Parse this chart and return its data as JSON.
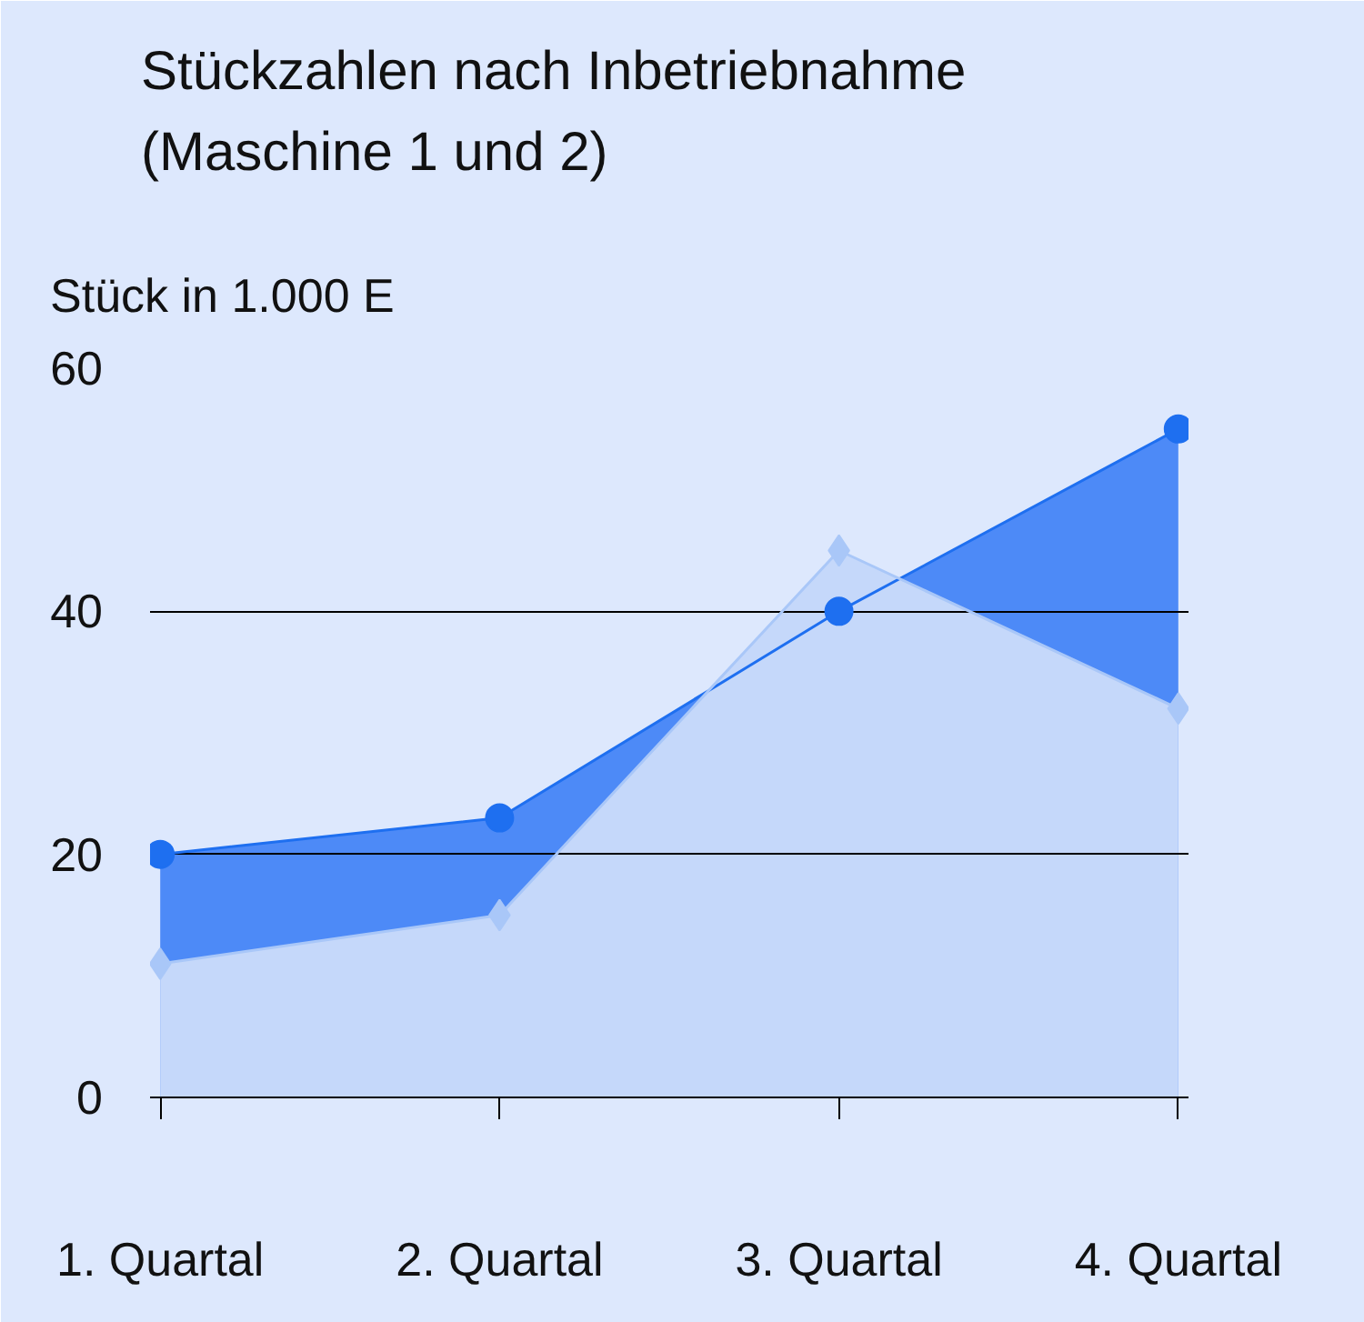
{
  "chart_data": {
    "type": "area",
    "title": "Stückzahlen nach Inbetriebnahme\n(Maschine 1 und 2)",
    "ylabel": "Stück in 1.000 E",
    "categories": [
      "1. Quartal",
      "2. Quartal",
      "3. Quartal",
      "4. Quartal"
    ],
    "series": [
      {
        "color": "#4d8af7",
        "colors": [
          "#1e6ff0",
          "#1e6ff0",
          "#1e6ff0",
          "#1e6ff0"
        ],
        "marker": "circle",
        "values": [
          20,
          23,
          40,
          55
        ]
      },
      {
        "color": "#c5d8fa",
        "colors": [
          "#a9c7f8",
          "#a9c7f8",
          "#a9c7f8",
          "#a9c7f8"
        ],
        "marker": "diamond",
        "values": [
          11,
          15,
          45,
          32
        ]
      }
    ],
    "ylim": [
      0,
      60
    ],
    "yticks": [
      0,
      20,
      40,
      60
    ],
    "grid": "y"
  }
}
